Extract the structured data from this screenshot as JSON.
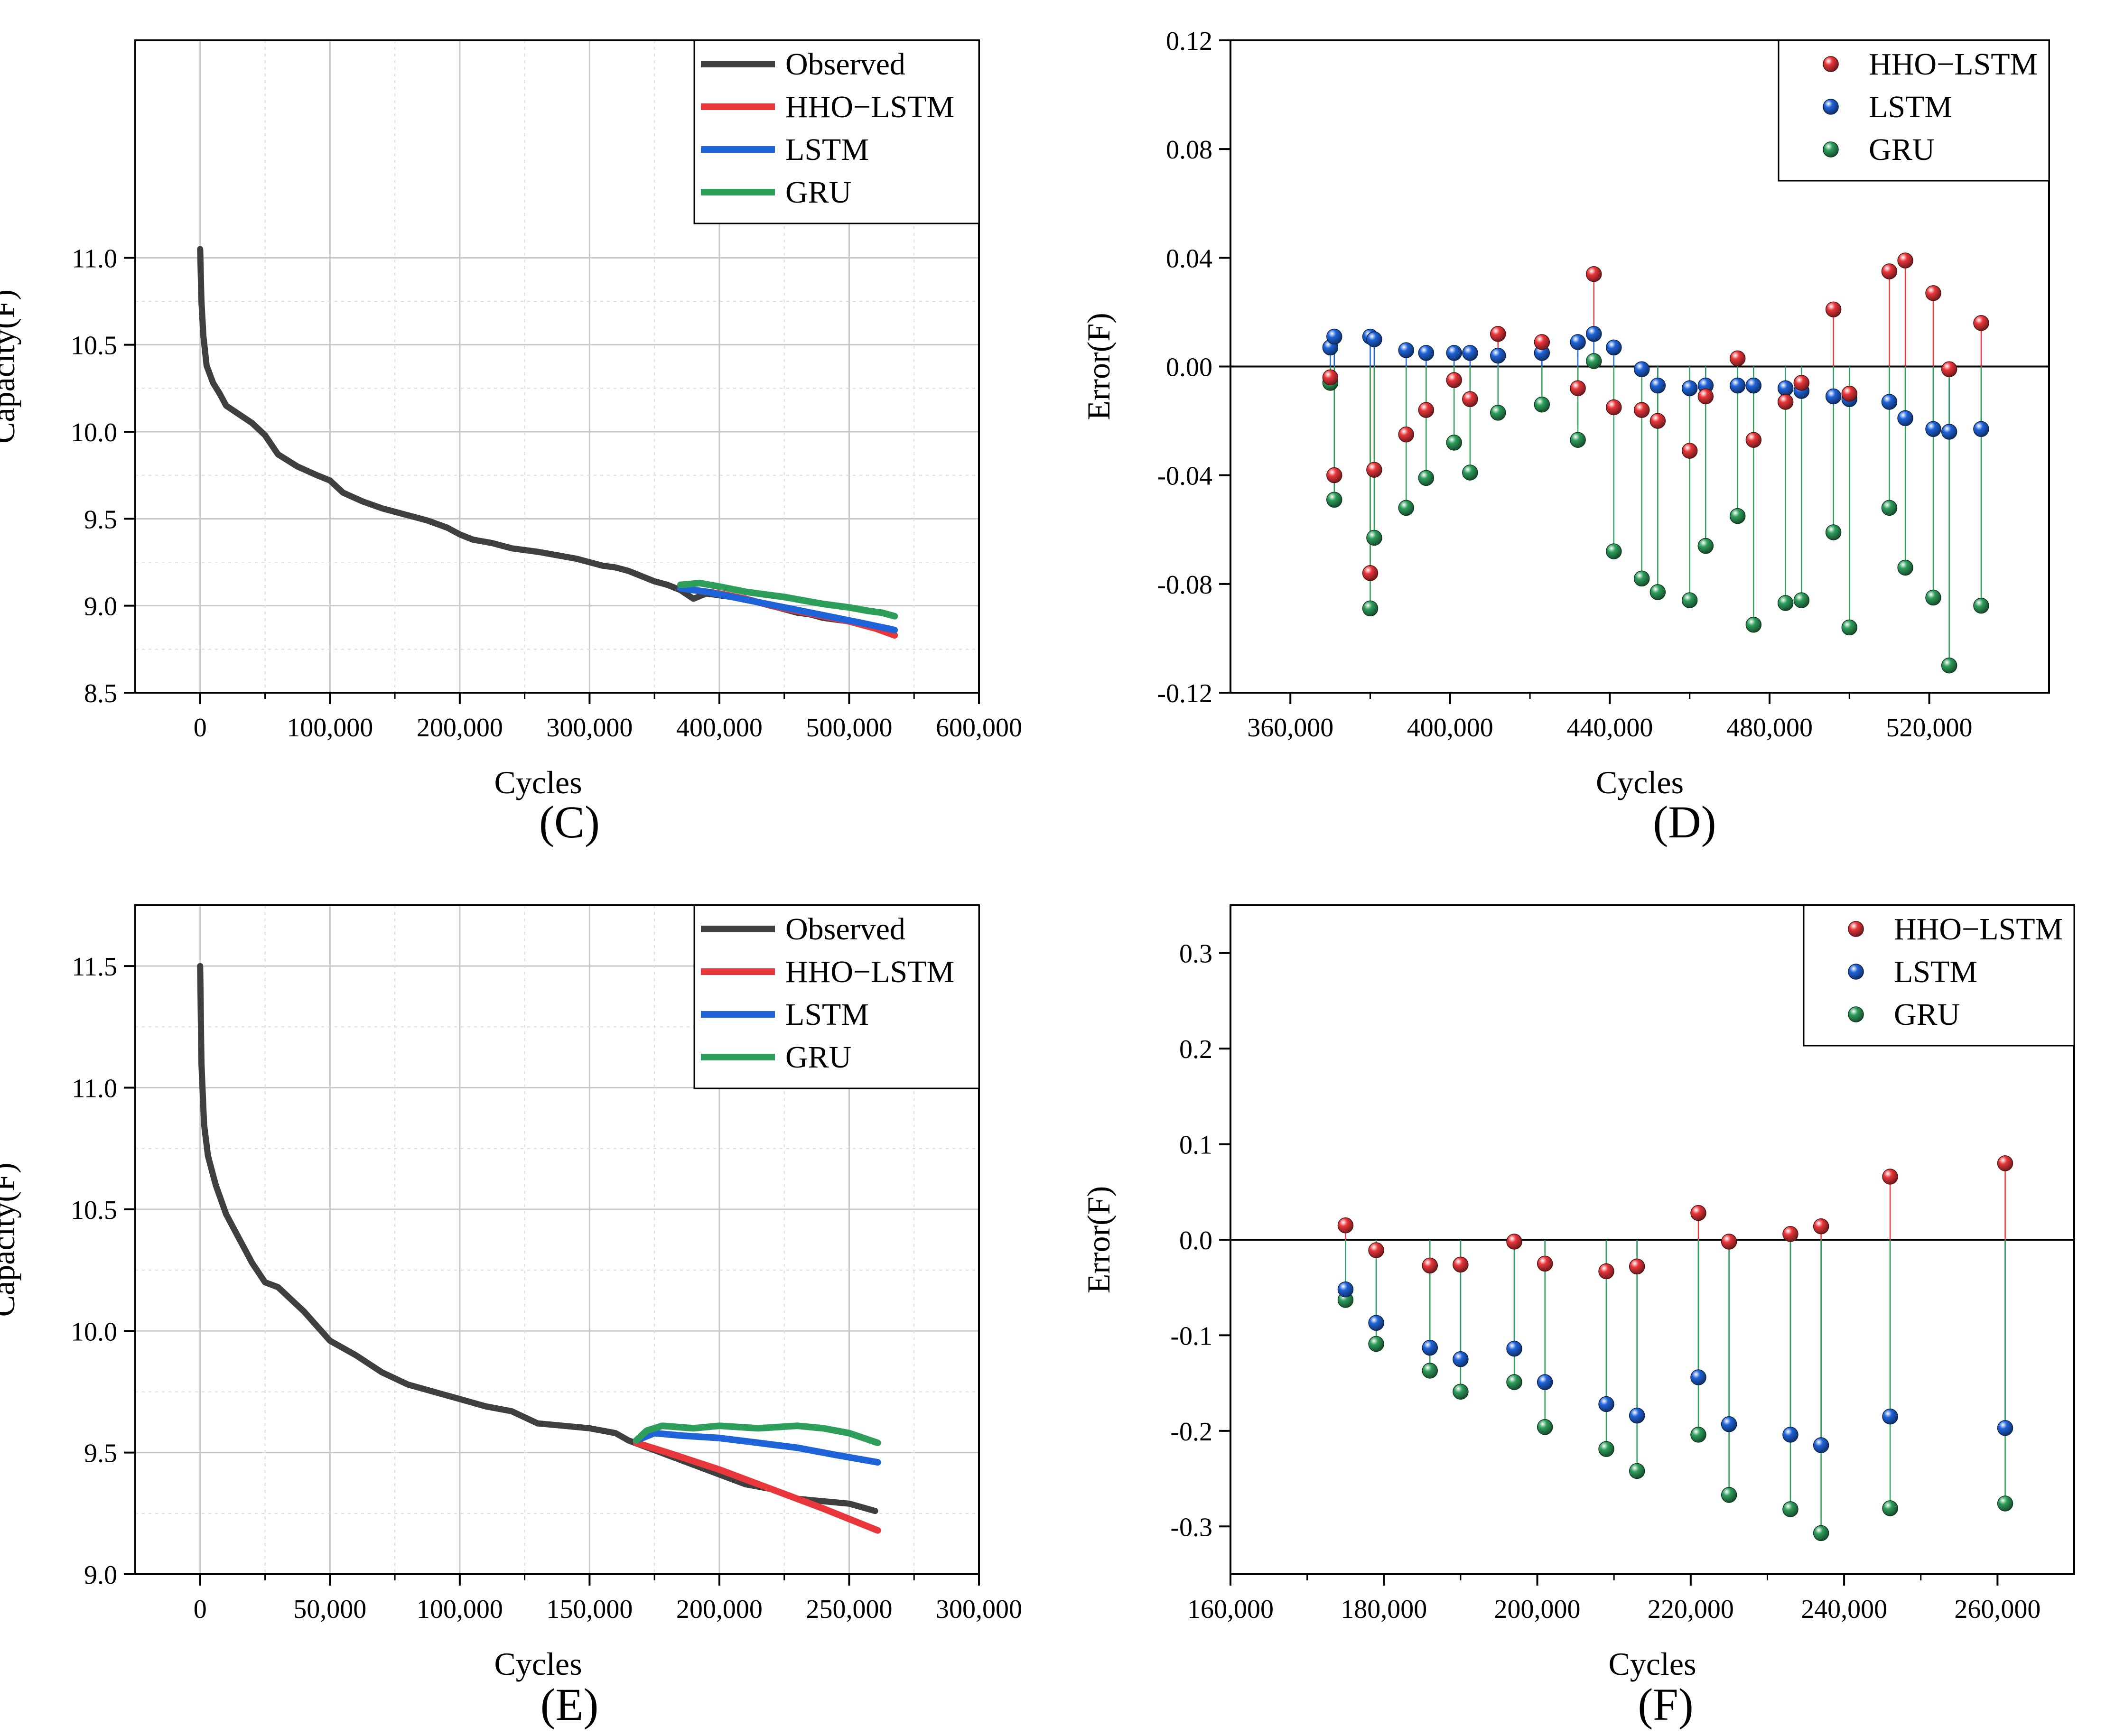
{
  "colors": {
    "observed": "#3f3f3f",
    "hho_lstm": "#e8363a",
    "lstm": "#1f63d8",
    "gru": "#2e9e5b",
    "grid": "#c8c8c8",
    "axis": "#000000"
  },
  "chart_data": [
    {
      "id": "C",
      "type": "line",
      "panel_label": "(C)",
      "xlabel": "Cycles",
      "ylabel": "Capacity(F)",
      "xlim": [
        -50000,
        600000
      ],
      "ylim": [
        8.5,
        12.25
      ],
      "xticks": [
        0,
        100000,
        200000,
        300000,
        400000,
        500000,
        600000
      ],
      "xtick_labels": [
        "0",
        "100,000",
        "200,000",
        "300,000",
        "400,000",
        "500,000",
        "600,000"
      ],
      "yticks": [
        8.5,
        9.0,
        9.5,
        10.0,
        10.5,
        11.0
      ],
      "ytick_labels": [
        "8.5",
        "9.0",
        "9.5",
        "10.0",
        "10.5",
        "11.0"
      ],
      "legend": [
        "Observed",
        "HHO−LSTM",
        "LSTM",
        "GRU"
      ],
      "legend_position": "top-right",
      "series": [
        {
          "name": "Observed",
          "key": "observed",
          "x": [
            0,
            1000,
            2500,
            5000,
            10000,
            15000,
            20000,
            30000,
            40000,
            50000,
            60000,
            75000,
            90000,
            100000,
            110000,
            125000,
            140000,
            150000,
            160000,
            175000,
            190000,
            200000,
            210000,
            225000,
            240000,
            260000,
            275000,
            290000,
            300000,
            310000,
            320000,
            330000,
            340000,
            350000,
            360000,
            370000,
            380000,
            390000,
            400000,
            420000,
            440000,
            460000,
            470000,
            480000,
            490000,
            500000,
            510000,
            520000,
            530000,
            535000
          ],
          "y": [
            11.05,
            10.75,
            10.55,
            10.38,
            10.28,
            10.22,
            10.15,
            10.1,
            10.05,
            9.98,
            9.87,
            9.8,
            9.75,
            9.72,
            9.65,
            9.6,
            9.56,
            9.54,
            9.52,
            9.49,
            9.45,
            9.41,
            9.38,
            9.36,
            9.33,
            9.31,
            9.29,
            9.27,
            9.25,
            9.23,
            9.22,
            9.2,
            9.17,
            9.14,
            9.12,
            9.09,
            9.04,
            9.07,
            9.06,
            9.04,
            9.0,
            8.96,
            8.95,
            8.93,
            8.92,
            8.91,
            8.9,
            8.88,
            8.87,
            8.86
          ]
        },
        {
          "name": "HHO−LSTM",
          "key": "hho_lstm",
          "x": [
            380000,
            400000,
            420000,
            440000,
            460000,
            480000,
            500000,
            520000,
            535000
          ],
          "y": [
            9.09,
            9.07,
            9.04,
            9.0,
            8.97,
            8.94,
            8.91,
            8.87,
            8.83
          ]
        },
        {
          "name": "LSTM",
          "key": "lstm",
          "x": [
            370000,
            390000,
            410000,
            430000,
            450000,
            470000,
            490000,
            510000,
            535000
          ],
          "y": [
            9.1,
            9.08,
            9.05,
            9.02,
            8.99,
            8.96,
            8.93,
            8.9,
            8.86
          ]
        },
        {
          "name": "GRU",
          "key": "gru",
          "x": [
            370000,
            385000,
            400000,
            420000,
            440000,
            450000,
            465000,
            480000,
            500000,
            515000,
            525000,
            535000
          ],
          "y": [
            9.12,
            9.13,
            9.11,
            9.08,
            9.06,
            9.05,
            9.03,
            9.01,
            8.99,
            8.97,
            8.96,
            8.94
          ]
        }
      ]
    },
    {
      "id": "D",
      "type": "scatter",
      "panel_label": "(D)",
      "xlabel": "Cycles",
      "ylabel": "Error(F)",
      "xlim": [
        345000,
        550000
      ],
      "ylim": [
        -0.12,
        0.12
      ],
      "xticks": [
        360000,
        400000,
        440000,
        480000,
        520000
      ],
      "xtick_labels": [
        "360,000",
        "400,000",
        "440,000",
        "480,000",
        "520,000"
      ],
      "yticks": [
        -0.12,
        -0.08,
        -0.04,
        0.0,
        0.04,
        0.08,
        0.12
      ],
      "ytick_labels": [
        "-0.12",
        "-0.08",
        "-0.04",
        "0.00",
        "0.04",
        "0.08",
        "0.12"
      ],
      "legend": [
        "HHO−LSTM",
        "LSTM",
        "GRU"
      ],
      "legend_position": "top-right",
      "x": [
        370000,
        371000,
        380000,
        381000,
        389000,
        394000,
        401000,
        405000,
        412000,
        423000,
        432000,
        436000,
        441000,
        448000,
        452000,
        460000,
        464000,
        472000,
        476000,
        484000,
        488000,
        496000,
        500000,
        510000,
        514000,
        521000,
        525000,
        533000
      ],
      "series": [
        {
          "name": "HHO−LSTM",
          "key": "hho_lstm",
          "y": [
            -0.004,
            -0.04,
            -0.076,
            -0.038,
            -0.025,
            -0.016,
            -0.005,
            -0.012,
            0.012,
            0.009,
            -0.008,
            0.034,
            -0.015,
            -0.016,
            -0.02,
            -0.031,
            -0.011,
            0.003,
            -0.027,
            -0.013,
            -0.006,
            0.021,
            -0.01,
            0.035,
            0.039,
            0.027,
            -0.001,
            0.016
          ]
        },
        {
          "name": "LSTM",
          "key": "lstm",
          "y": [
            0.007,
            0.011,
            0.011,
            0.01,
            0.006,
            0.005,
            0.005,
            0.005,
            0.004,
            0.005,
            0.009,
            0.012,
            0.007,
            -0.001,
            -0.007,
            -0.008,
            -0.007,
            -0.007,
            -0.007,
            -0.008,
            -0.009,
            -0.011,
            -0.012,
            -0.013,
            -0.019,
            -0.023,
            -0.024,
            -0.023
          ]
        },
        {
          "name": "GRU",
          "key": "gru",
          "y": [
            -0.006,
            -0.049,
            -0.089,
            -0.063,
            -0.052,
            -0.041,
            -0.028,
            -0.039,
            -0.017,
            -0.014,
            -0.027,
            0.002,
            -0.068,
            -0.078,
            -0.083,
            -0.086,
            -0.066,
            -0.055,
            -0.095,
            -0.087,
            -0.086,
            -0.061,
            -0.096,
            -0.052,
            -0.074,
            -0.085,
            -0.11,
            -0.088
          ]
        }
      ]
    },
    {
      "id": "E",
      "type": "line",
      "panel_label": "(E)",
      "xlabel": "Cycles",
      "ylabel": "Capacity(F)",
      "xlim": [
        -25000,
        300000
      ],
      "ylim": [
        9.0,
        11.75
      ],
      "xticks": [
        0,
        50000,
        100000,
        150000,
        200000,
        250000,
        300000
      ],
      "xtick_labels": [
        "0",
        "50,000",
        "100,000",
        "150,000",
        "200,000",
        "250,000",
        "300,000"
      ],
      "yticks": [
        9.0,
        9.5,
        10.0,
        10.5,
        11.0,
        11.5
      ],
      "ytick_labels": [
        "9.0",
        "9.5",
        "10.0",
        "10.5",
        "11.0",
        "11.5"
      ],
      "legend": [
        "Observed",
        "HHO−LSTM",
        "LSTM",
        "GRU"
      ],
      "legend_position": "top-right",
      "series": [
        {
          "name": "Observed",
          "key": "observed",
          "x": [
            0,
            500,
            1500,
            3000,
            6000,
            10000,
            15000,
            20000,
            25000,
            30000,
            40000,
            50000,
            60000,
            70000,
            80000,
            90000,
            100000,
            110000,
            120000,
            130000,
            140000,
            150000,
            160000,
            165000,
            170000,
            180000,
            190000,
            200000,
            210000,
            220000,
            230000,
            240000,
            250000,
            260000
          ],
          "y": [
            11.5,
            11.1,
            10.85,
            10.72,
            10.6,
            10.48,
            10.38,
            10.28,
            10.2,
            10.18,
            10.08,
            9.96,
            9.9,
            9.83,
            9.78,
            9.75,
            9.72,
            9.69,
            9.67,
            9.62,
            9.61,
            9.6,
            9.58,
            9.55,
            9.53,
            9.49,
            9.45,
            9.41,
            9.37,
            9.35,
            9.31,
            9.3,
            9.29,
            9.26
          ]
        },
        {
          "name": "HHO−LSTM",
          "key": "hho_lstm",
          "x": [
            168000,
            180000,
            200000,
            220000,
            240000,
            261000
          ],
          "y": [
            9.54,
            9.5,
            9.43,
            9.35,
            9.27,
            9.18
          ]
        },
        {
          "name": "LSTM",
          "key": "lstm",
          "x": [
            168000,
            175000,
            185000,
            200000,
            215000,
            230000,
            245000,
            261000
          ],
          "y": [
            9.55,
            9.58,
            9.57,
            9.56,
            9.54,
            9.52,
            9.49,
            9.46
          ]
        },
        {
          "name": "GRU",
          "key": "gru",
          "x": [
            168000,
            172000,
            178000,
            190000,
            200000,
            215000,
            230000,
            240000,
            250000,
            261000
          ],
          "y": [
            9.55,
            9.59,
            9.61,
            9.6,
            9.61,
            9.6,
            9.61,
            9.6,
            9.58,
            9.54
          ]
        }
      ]
    },
    {
      "id": "F",
      "type": "scatter",
      "panel_label": "(F)",
      "xlabel": "Cycles",
      "ylabel": "Error(F)",
      "xlim": [
        160000,
        270000
      ],
      "ylim": [
        -0.35,
        0.35
      ],
      "xticks": [
        160000,
        180000,
        200000,
        220000,
        240000,
        260000
      ],
      "xtick_labels": [
        "160,000",
        "180,000",
        "200,000",
        "220,000",
        "240,000",
        "260,000"
      ],
      "yticks": [
        -0.3,
        -0.2,
        -0.1,
        0.0,
        0.1,
        0.2,
        0.3
      ],
      "ytick_labels": [
        "-0.3",
        "-0.2",
        "-0.1",
        "0.0",
        "0.1",
        "0.2",
        "0.3"
      ],
      "legend": [
        "HHO−LSTM",
        "LSTM",
        "GRU"
      ],
      "legend_position": "top-right",
      "x": [
        175000,
        179000,
        186000,
        190000,
        197000,
        201000,
        209000,
        213000,
        221000,
        225000,
        233000,
        237000,
        246000,
        261000
      ],
      "series": [
        {
          "name": "HHO−LSTM",
          "key": "hho_lstm",
          "y": [
            0.015,
            -0.011,
            -0.027,
            -0.026,
            -0.002,
            -0.025,
            -0.033,
            -0.028,
            0.028,
            -0.002,
            0.006,
            0.014,
            0.066,
            0.08
          ]
        },
        {
          "name": "LSTM",
          "key": "lstm",
          "y": [
            -0.052,
            -0.087,
            -0.113,
            -0.125,
            -0.114,
            -0.149,
            -0.172,
            -0.184,
            -0.144,
            -0.193,
            -0.204,
            -0.215,
            -0.185,
            -0.197
          ]
        },
        {
          "name": "GRU",
          "key": "gru",
          "y": [
            -0.063,
            -0.109,
            -0.137,
            -0.159,
            -0.149,
            -0.196,
            -0.219,
            -0.242,
            -0.204,
            -0.267,
            -0.282,
            -0.307,
            -0.281,
            -0.276
          ]
        }
      ]
    }
  ]
}
